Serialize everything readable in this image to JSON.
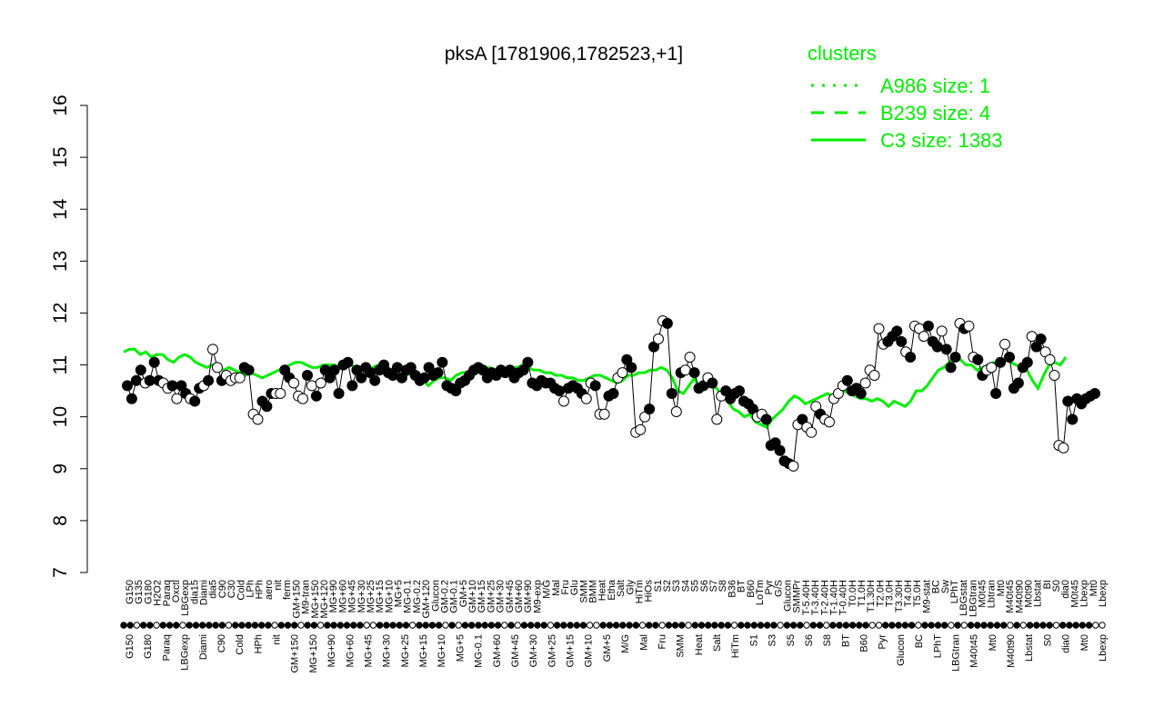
{
  "colors": {
    "accent": "#00ee00",
    "ink": "#000000",
    "background": "#ffffff"
  },
  "chart_data": {
    "type": "line",
    "title": "pksA [1781906,1782523,+1]",
    "xlabel": "",
    "ylabel": "",
    "ylim": [
      7,
      16
    ],
    "yticks": [
      7,
      8,
      9,
      10,
      11,
      12,
      13,
      14,
      15,
      16
    ],
    "grid": false,
    "legend_position": "top-right",
    "legend": {
      "title": "clusters",
      "entries": [
        {
          "label": "A986 size: 1",
          "style": "dotted"
        },
        {
          "label": "B239 size: 4",
          "style": "dashed"
        },
        {
          "label": "C3 size: 1383",
          "style": "solid"
        }
      ]
    },
    "x_top_labels": [
      "G150",
      "G135",
      "G180",
      "H2O2",
      "Paraq",
      "Oxctl",
      "LBGexp",
      "dia15",
      "Diami",
      "dia5",
      "C90",
      "C30",
      "Cold",
      "LPh",
      "HPh",
      "aero",
      "nit",
      "ferm",
      "GM+150",
      "M9-tran",
      "MG+150",
      "MG+120",
      "MG+90",
      "MG+60",
      "MG+45",
      "MG+30",
      "MG+25",
      "MG+15",
      "MG+10",
      "MG+5",
      "MG-0.1",
      "MG-0.2",
      "GM+120",
      "Glucon",
      "GM-0.2",
      "GM-0.1",
      "GM+5",
      "GM+10",
      "GM+15",
      "GM+25",
      "GM+30",
      "GM+45",
      "GM+60",
      "GM+90",
      "M9-exp",
      "M/G",
      "Mal",
      "Fru",
      "Glu",
      "SMM",
      "BMM",
      "Heat",
      "Etha",
      "Salt",
      "Gly",
      "HiTm",
      "HiOs",
      "S1",
      "S2",
      "S3",
      "S4",
      "S5",
      "S6",
      "S7",
      "S8",
      "B36",
      "BT",
      "B60",
      "LoTm",
      "Pyr",
      "G/S",
      "Glucon",
      "SMMPr",
      "T-5.40H",
      "T-3.40H",
      "T-2.40H",
      "T-1.40H",
      "T-0.40H",
      "T0.0H",
      "T1.0H",
      "T1.30H",
      "T2.0H",
      "T3.0H",
      "T3.30H",
      "T4.0H",
      "T5.0H",
      "M9-stat",
      "BC",
      "Sw",
      "LPhT",
      "LBGstat",
      "LBGtran",
      "M0t45",
      "Lbtran",
      "Mt0",
      "M40t45",
      "M40t90",
      "M0t90",
      "Lbstat",
      "BI",
      "S0",
      "dia0",
      "M0t45",
      "Lbexp",
      "Mt0",
      "Lbexp"
    ],
    "x_bottom_labels": [
      "G150",
      "G180",
      "Paraq",
      "LBGexp",
      "Diami",
      "C90",
      "Cold",
      "HPh",
      "nit",
      "GM+150",
      "MG+150",
      "MG+90",
      "MG+60",
      "MG+45",
      "MG+30",
      "MG+25",
      "MG+15",
      "MG+10",
      "MG+5",
      "MG-0.1",
      "GM+60",
      "GM+45",
      "GM+30",
      "GM+25",
      "GM+15",
      "GM+10",
      "GM+5",
      "M/G",
      "Mal",
      "Fru",
      "SMM",
      "Heat",
      "Salt",
      "HiTm",
      "S1",
      "S3",
      "S5",
      "S6",
      "S8",
      "BT",
      "B60",
      "Pyr",
      "Glucon",
      "BC",
      "LPhT",
      "LBGtran",
      "M40t45",
      "Mt0",
      "M40t90",
      "Lbstat",
      "S0",
      "dia0",
      "Mt0",
      "Lbexp"
    ],
    "series": [
      {
        "style": "solid",
        "values": [
          11.25,
          11.3,
          11.3,
          11.2,
          11.25,
          11.15,
          11.2,
          11.2,
          11.1,
          11.05,
          11.15,
          11.2,
          11.15,
          11.05,
          11.0,
          10.95,
          11.0,
          11.0,
          10.9,
          10.95,
          10.9,
          10.85,
          10.8,
          10.85,
          10.8,
          10.75,
          10.8,
          10.85,
          10.9,
          10.95,
          11.0,
          11.05,
          11.05,
          11.0,
          10.95,
          10.95,
          11.0,
          11.0,
          11.0,
          10.95,
          10.95,
          11.0,
          10.95,
          10.9,
          10.9,
          10.95,
          11.0,
          10.95,
          10.9,
          10.85,
          10.8,
          10.8,
          10.85,
          10.8,
          10.7,
          10.6,
          10.7,
          10.75,
          10.75,
          10.7,
          10.8,
          10.85,
          10.85,
          10.85,
          10.9,
          10.9,
          10.95,
          10.9,
          10.85,
          10.9,
          10.95,
          10.95,
          11.0,
          10.95,
          10.9,
          10.9,
          10.85,
          10.85,
          10.8,
          10.8,
          10.75,
          10.75,
          10.7,
          10.7,
          10.75,
          10.8,
          10.8,
          10.75,
          10.7,
          10.65,
          10.7,
          10.8,
          10.8,
          10.85,
          10.85,
          10.9,
          10.9,
          10.95,
          10.9,
          10.75,
          10.5,
          10.45,
          10.6,
          10.75,
          10.5,
          10.55,
          10.6,
          10.55,
          10.4,
          10.3,
          10.15,
          10.1,
          10.0,
          10.05,
          9.9,
          9.85,
          9.8,
          9.95,
          10.05,
          10.15,
          10.3,
          10.4,
          10.35,
          10.25,
          10.3,
          10.35,
          10.4,
          10.45,
          10.4,
          10.45,
          10.5,
          10.45,
          10.4,
          10.35,
          10.35,
          10.3,
          10.35,
          10.3,
          10.2,
          10.3,
          10.25,
          10.2,
          10.3,
          10.5,
          10.5,
          10.6,
          10.75,
          10.9,
          10.95,
          11.05,
          11.15,
          11.1,
          11.0,
          11.0,
          10.9,
          10.95,
          11.0,
          11.05,
          11.05,
          11.1,
          11.05,
          11.0,
          10.95,
          10.9,
          10.7,
          10.55,
          10.8,
          11.0,
          11.05,
          11.0,
          11.15
        ]
      }
    ],
    "points": [
      10.6,
      10.35,
      10.7,
      10.9,
      10.65,
      10.7,
      11.05,
      10.7,
      10.65,
      10.55,
      10.6,
      10.35,
      10.6,
      10.45,
      10.35,
      10.3,
      10.55,
      10.6,
      10.7,
      11.3,
      10.95,
      10.7,
      10.8,
      10.7,
      10.75,
      10.75,
      10.95,
      10.9,
      10.05,
      9.95,
      10.3,
      10.2,
      10.45,
      10.45,
      10.45,
      10.9,
      10.75,
      10.65,
      10.4,
      10.35,
      10.8,
      10.6,
      10.4,
      10.65,
      10.9,
      10.75,
      10.9,
      10.45,
      11.0,
      11.05,
      10.6,
      10.9,
      10.75,
      10.95,
      10.85,
      10.7,
      10.9,
      11.0,
      10.85,
      10.8,
      10.95,
      10.75,
      10.9,
      10.95,
      10.8,
      10.7,
      10.75,
      10.95,
      10.8,
      10.85,
      11.05,
      10.6,
      10.55,
      10.5,
      10.65,
      10.7,
      10.8,
      10.9,
      10.95,
      10.9,
      10.75,
      10.85,
      10.8,
      10.9,
      10.85,
      10.9,
      10.75,
      10.85,
      10.9,
      11.05,
      10.65,
      10.6,
      10.7,
      10.65,
      10.65,
      10.55,
      10.5,
      10.3,
      10.55,
      10.6,
      10.55,
      10.45,
      10.35,
      10.65,
      10.6,
      10.05,
      10.05,
      10.4,
      10.45,
      10.75,
      10.85,
      11.1,
      10.95,
      9.7,
      9.75,
      10.0,
      10.15,
      11.35,
      11.5,
      11.85,
      11.8,
      10.45,
      10.1,
      10.85,
      10.9,
      11.15,
      10.85,
      10.55,
      10.6,
      10.75,
      10.65,
      9.95,
      10.4,
      10.5,
      10.35,
      10.45,
      10.5,
      10.3,
      10.25,
      10.15,
      10.0,
      10.05,
      9.95,
      9.45,
      9.5,
      9.35,
      9.15,
      9.1,
      9.05,
      9.85,
      9.95,
      9.8,
      9.7,
      10.2,
      10.05,
      9.95,
      9.9,
      10.35,
      10.45,
      10.6,
      10.7,
      10.5,
      10.55,
      10.45,
      10.65,
      10.9,
      10.8,
      11.7,
      11.4,
      11.45,
      11.55,
      11.65,
      11.45,
      11.25,
      11.15,
      11.75,
      11.7,
      11.55,
      11.75,
      11.45,
      11.35,
      11.65,
      11.3,
      10.95,
      11.15,
      11.8,
      11.7,
      11.75,
      11.15,
      11.1,
      10.8,
      10.9,
      10.95,
      10.45,
      11.05,
      11.4,
      11.15,
      10.55,
      10.65,
      10.95,
      11.05,
      11.55,
      11.35,
      11.5,
      11.25,
      11.1,
      10.8,
      9.45,
      9.4,
      10.3,
      9.95,
      10.35,
      10.25,
      10.35,
      10.4,
      10.45
    ],
    "point_styles": [
      "filled",
      "filled",
      "filled",
      "filled",
      "open",
      "filled",
      "filled",
      "filled",
      "open",
      "open",
      "filled",
      "open",
      "filled",
      "filled",
      "open",
      "filled",
      "filled",
      "open",
      "filled",
      "open",
      "open",
      "filled",
      "open",
      "open",
      "open",
      "open",
      "filled",
      "filled",
      "open",
      "open",
      "filled",
      "filled",
      "filled",
      "open",
      "open",
      "filled",
      "filled",
      "open",
      "open",
      "open",
      "filled",
      "open",
      "filled",
      "open",
      "filled",
      "filled",
      "filled",
      "filled",
      "filled",
      "filled",
      "filled",
      "filled",
      "filled",
      "filled",
      "filled",
      "filled",
      "filled",
      "filled",
      "filled",
      "filled",
      "filled",
      "filled",
      "filled",
      "filled",
      "filled",
      "filled",
      "filled",
      "filled",
      "filled",
      "filled",
      "filled",
      "filled",
      "filled",
      "filled",
      "filled",
      "filled",
      "filled",
      "filled",
      "filled",
      "filled",
      "filled",
      "filled",
      "filled",
      "filled",
      "filled",
      "filled",
      "filled",
      "filled",
      "filled",
      "filled",
      "filled",
      "filled",
      "filled",
      "filled",
      "filled",
      "filled",
      "filled",
      "open",
      "filled",
      "filled",
      "filled",
      "filled",
      "open",
      "open",
      "filled",
      "open",
      "open",
      "filled",
      "filled",
      "open",
      "open",
      "filled",
      "filled",
      "open",
      "open",
      "open",
      "filled",
      "filled",
      "open",
      "open",
      "filled",
      "filled",
      "open",
      "filled",
      "open",
      "open",
      "filled",
      "filled",
      "filled",
      "open",
      "filled",
      "open",
      "open",
      "filled",
      "filled",
      "filled",
      "filled",
      "filled",
      "filled",
      "filled",
      "open",
      "open",
      "filled",
      "filled",
      "filled",
      "filled",
      "filled",
      "filled",
      "open",
      "open",
      "filled",
      "open",
      "open",
      "open",
      "filled",
      "open",
      "open",
      "open",
      "open",
      "open",
      "filled",
      "filled",
      "filled",
      "filled",
      "open",
      "open",
      "open",
      "open",
      "open",
      "filled",
      "filled",
      "filled",
      "filled",
      "open",
      "filled",
      "open",
      "open",
      "open",
      "filled",
      "filled",
      "filled",
      "open",
      "filled",
      "filled",
      "filled",
      "open",
      "filled",
      "open",
      "open",
      "filled",
      "filled",
      "open",
      "open",
      "filled",
      "filled",
      "open",
      "filled",
      "filled",
      "filled",
      "filled",
      "filled",
      "open",
      "filled",
      "filled",
      "open",
      "open",
      "open",
      "open",
      "open"
    ]
  }
}
